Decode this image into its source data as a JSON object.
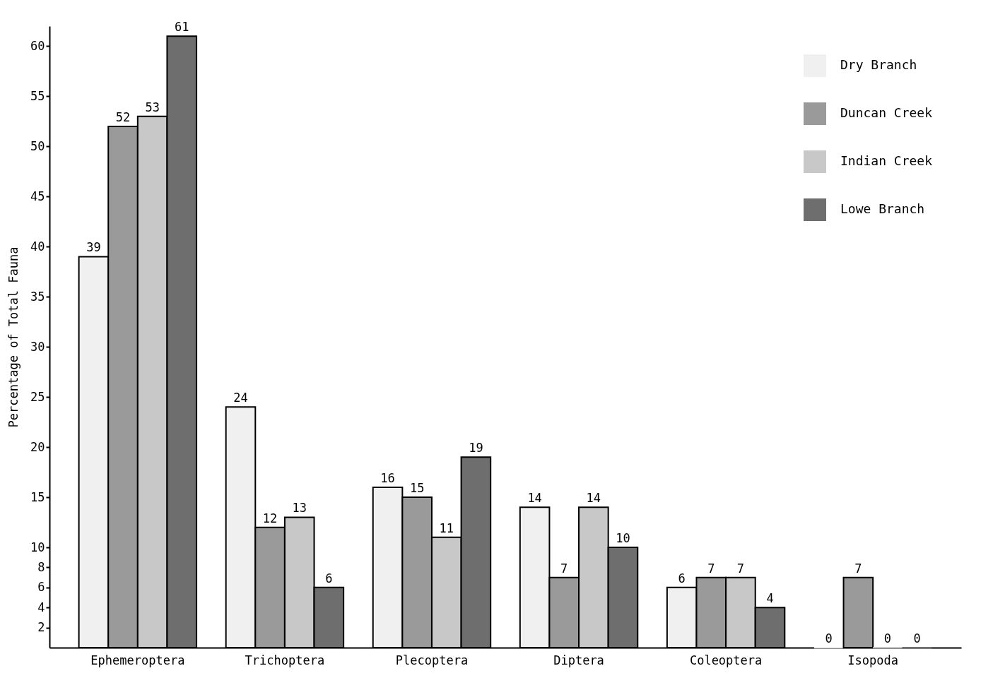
{
  "chart_data": {
    "type": "bar",
    "ylabel": "Percentage of Total Fauna",
    "categories": [
      "Ephemeroptera",
      "Trichoptera",
      "Plecoptera",
      "Diptera",
      "Coleoptera",
      "Isopoda"
    ],
    "series": [
      {
        "name": "Dry Branch",
        "color": "#f0f0f0",
        "values": [
          39,
          24,
          16,
          14,
          6,
          0
        ]
      },
      {
        "name": "Duncan Creek",
        "color": "#9a9a9a",
        "values": [
          52,
          12,
          15,
          7,
          7,
          7
        ]
      },
      {
        "name": "Indian Creek",
        "color": "#c8c8c8",
        "values": [
          53,
          13,
          11,
          14,
          7,
          0
        ]
      },
      {
        "name": "Lowe Branch",
        "color": "#6e6e6e",
        "values": [
          61,
          6,
          19,
          10,
          4,
          0
        ]
      }
    ],
    "ylim": [
      0,
      62
    ],
    "yticks": [
      2,
      4,
      6,
      8,
      10,
      15,
      20,
      25,
      30,
      35,
      40,
      45,
      50,
      55,
      60
    ],
    "data_labels": true,
    "grid": false,
    "legend": "top right"
  }
}
